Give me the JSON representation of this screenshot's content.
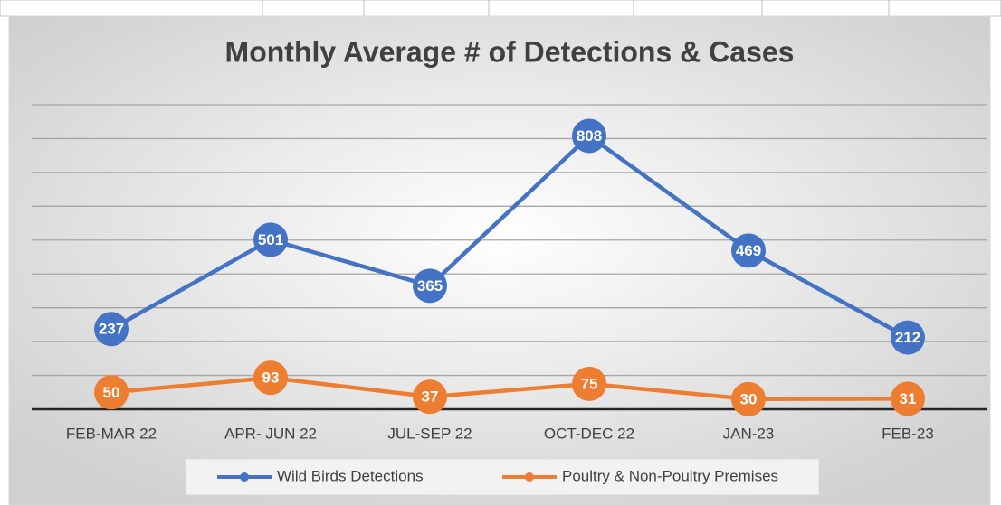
{
  "chart_data": {
    "type": "line",
    "title": "Monthly Average # of Detections & Cases",
    "categories": [
      "FEB-MAR 22",
      "APR- JUN 22",
      "JUL-SEP 22",
      "OCT-DEC 22",
      "JAN-23",
      "FEB-23"
    ],
    "series": [
      {
        "name": "Wild Birds Detections",
        "color": "#4472c4",
        "values": [
          237,
          501,
          365,
          808,
          469,
          212
        ]
      },
      {
        "name": "Poultry & Non-Poultry Premises",
        "color": "#ed7d31",
        "values": [
          50,
          93,
          37,
          75,
          30,
          31
        ]
      }
    ],
    "ylim": [
      0,
      900
    ],
    "yticks": [
      0,
      100,
      200,
      300,
      400,
      500,
      600,
      700,
      800,
      900
    ],
    "grid": true,
    "legend": "bottom"
  }
}
